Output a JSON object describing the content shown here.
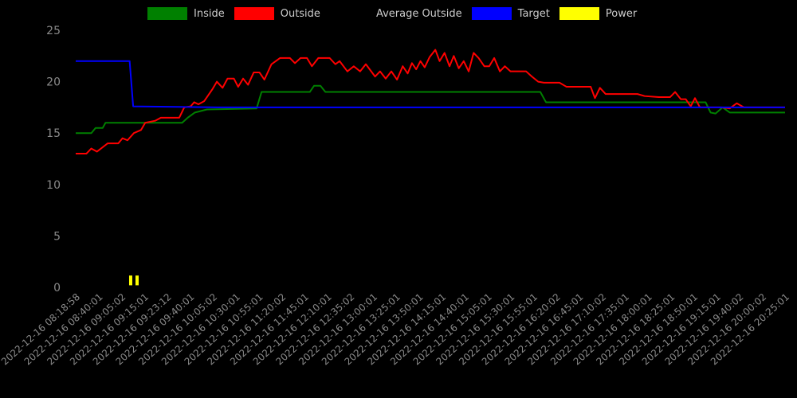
{
  "chart_data": {
    "type": "line",
    "title": "",
    "background": "#000000",
    "axis_text_color": "#8a8a8a",
    "legend_text_color": "#cccccc",
    "x_encoding": "fraction of x-axis (0 = first tick, 1 = last tick)",
    "legend_entries": [
      {
        "label": "Inside",
        "color": "#008000"
      },
      {
        "label": "Outside",
        "color": "#ff0000"
      },
      {
        "label": "Average Outside",
        "color": "#000000"
      },
      {
        "label": "Target",
        "color": "#0000ff"
      },
      {
        "label": "Power",
        "color": "#ffff00"
      }
    ],
    "y_axis": {
      "ticks": [
        0,
        5,
        10,
        15,
        20,
        25
      ],
      "min": 0,
      "max": 25,
      "grid": false
    },
    "x_axis": {
      "labels": [
        "2022-12-16 08:18:58",
        "2022-12-16 08:40:01",
        "2022-12-16 09:05:02",
        "2022-12-16 09:15:01",
        "2022-12-16 09:23:12",
        "2022-12-16 09:40:01",
        "2022-12-16 10:05:02",
        "2022-12-16 10:30:01",
        "2022-12-16 10:55:01",
        "2022-12-16 11:20:02",
        "2022-12-16 11:45:01",
        "2022-12-16 12:10:01",
        "2022-12-16 12:35:02",
        "2022-12-16 13:00:01",
        "2022-12-16 13:25:01",
        "2022-12-16 13:50:01",
        "2022-12-16 14:15:01",
        "2022-12-16 14:40:01",
        "2022-12-16 15:05:01",
        "2022-12-16 15:30:01",
        "2022-12-16 15:55:01",
        "2022-12-16 16:20:02",
        "2022-12-16 16:45:01",
        "2022-12-16 17:10:02",
        "2022-12-16 17:35:01",
        "2022-12-16 18:00:01",
        "2022-12-16 18:25:01",
        "2022-12-16 18:50:01",
        "2022-12-16 19:15:01",
        "2022-12-16 19:40:02",
        "2022-12-16 20:00:02",
        "2022-12-16 20:25:01"
      ]
    },
    "series": [
      {
        "name": "Inside",
        "color": "#008000",
        "points": [
          [
            0,
            15
          ],
          [
            0.022,
            15
          ],
          [
            0.028,
            15.5
          ],
          [
            0.038,
            15.5
          ],
          [
            0.042,
            16
          ],
          [
            0.15,
            16
          ],
          [
            0.158,
            16.5
          ],
          [
            0.168,
            17
          ],
          [
            0.185,
            17.3
          ],
          [
            0.255,
            17.4
          ],
          [
            0.262,
            19
          ],
          [
            0.33,
            19
          ],
          [
            0.336,
            19.6
          ],
          [
            0.345,
            19.6
          ],
          [
            0.352,
            19
          ],
          [
            0.655,
            19
          ],
          [
            0.663,
            18
          ],
          [
            0.888,
            18
          ],
          [
            0.895,
            17
          ],
          [
            0.902,
            16.9
          ],
          [
            0.912,
            17.5
          ],
          [
            0.922,
            17
          ],
          [
            1,
            17
          ]
        ]
      },
      {
        "name": "Outside",
        "color": "#ff0000",
        "points": [
          [
            0,
            13
          ],
          [
            0.015,
            13
          ],
          [
            0.022,
            13.5
          ],
          [
            0.03,
            13.2
          ],
          [
            0.045,
            14
          ],
          [
            0.06,
            14
          ],
          [
            0.066,
            14.5
          ],
          [
            0.073,
            14.3
          ],
          [
            0.082,
            15
          ],
          [
            0.092,
            15.3
          ],
          [
            0.098,
            16
          ],
          [
            0.112,
            16.2
          ],
          [
            0.12,
            16.5
          ],
          [
            0.146,
            16.5
          ],
          [
            0.153,
            17.5
          ],
          [
            0.162,
            17.6
          ],
          [
            0.167,
            18
          ],
          [
            0.173,
            17.8
          ],
          [
            0.181,
            18.1
          ],
          [
            0.187,
            18.7
          ],
          [
            0.193,
            19.3
          ],
          [
            0.199,
            20
          ],
          [
            0.207,
            19.4
          ],
          [
            0.214,
            20.3
          ],
          [
            0.223,
            20.3
          ],
          [
            0.229,
            19.5
          ],
          [
            0.236,
            20.3
          ],
          [
            0.243,
            19.7
          ],
          [
            0.251,
            20.9
          ],
          [
            0.259,
            20.9
          ],
          [
            0.266,
            20.2
          ],
          [
            0.276,
            21.7
          ],
          [
            0.288,
            22.3
          ],
          [
            0.302,
            22.3
          ],
          [
            0.309,
            21.8
          ],
          [
            0.317,
            22.3
          ],
          [
            0.326,
            22.3
          ],
          [
            0.333,
            21.5
          ],
          [
            0.342,
            22.3
          ],
          [
            0.358,
            22.3
          ],
          [
            0.366,
            21.7
          ],
          [
            0.372,
            22
          ],
          [
            0.383,
            21
          ],
          [
            0.392,
            21.5
          ],
          [
            0.401,
            21
          ],
          [
            0.409,
            21.7
          ],
          [
            0.422,
            20.5
          ],
          [
            0.429,
            21
          ],
          [
            0.437,
            20.3
          ],
          [
            0.445,
            21
          ],
          [
            0.453,
            20.2
          ],
          [
            0.461,
            21.5
          ],
          [
            0.468,
            20.8
          ],
          [
            0.474,
            21.8
          ],
          [
            0.48,
            21.2
          ],
          [
            0.486,
            22
          ],
          [
            0.492,
            21.4
          ],
          [
            0.499,
            22.4
          ],
          [
            0.507,
            23.1
          ],
          [
            0.513,
            22
          ],
          [
            0.52,
            22.8
          ],
          [
            0.527,
            21.5
          ],
          [
            0.533,
            22.5
          ],
          [
            0.54,
            21.3
          ],
          [
            0.547,
            22
          ],
          [
            0.554,
            21
          ],
          [
            0.561,
            22.8
          ],
          [
            0.568,
            22.3
          ],
          [
            0.576,
            21.5
          ],
          [
            0.583,
            21.5
          ],
          [
            0.59,
            22.3
          ],
          [
            0.598,
            21
          ],
          [
            0.605,
            21.5
          ],
          [
            0.613,
            21
          ],
          [
            0.635,
            21
          ],
          [
            0.643,
            20.5
          ],
          [
            0.652,
            20
          ],
          [
            0.66,
            19.9
          ],
          [
            0.682,
            19.9
          ],
          [
            0.692,
            19.5
          ],
          [
            0.726,
            19.5
          ],
          [
            0.732,
            18.4
          ],
          [
            0.739,
            19.4
          ],
          [
            0.747,
            18.8
          ],
          [
            0.792,
            18.8
          ],
          [
            0.802,
            18.6
          ],
          [
            0.822,
            18.5
          ],
          [
            0.838,
            18.5
          ],
          [
            0.845,
            19
          ],
          [
            0.853,
            18.3
          ],
          [
            0.86,
            18.3
          ],
          [
            0.867,
            17.6
          ],
          [
            0.873,
            18.4
          ],
          [
            0.88,
            17.5
          ],
          [
            0.91,
            17.5
          ],
          [
            0.922,
            17.4
          ],
          [
            0.932,
            17.9
          ],
          [
            0.942,
            17.5
          ],
          [
            1,
            17.5
          ]
        ]
      },
      {
        "name": "Target",
        "color": "#0000ff",
        "points": [
          [
            0,
            22
          ],
          [
            0.076,
            22
          ],
          [
            0.081,
            17.6
          ],
          [
            0.2,
            17.5
          ],
          [
            1,
            17.5
          ]
        ]
      },
      {
        "name": "Power",
        "color": "#ffff00",
        "bar_segments": [
          [
            [
              0.0775,
              0.2
            ],
            [
              0.0775,
              1.15
            ]
          ],
          [
            [
              0.0865,
              0.2
            ],
            [
              0.0865,
              1.15
            ]
          ]
        ]
      }
    ]
  }
}
